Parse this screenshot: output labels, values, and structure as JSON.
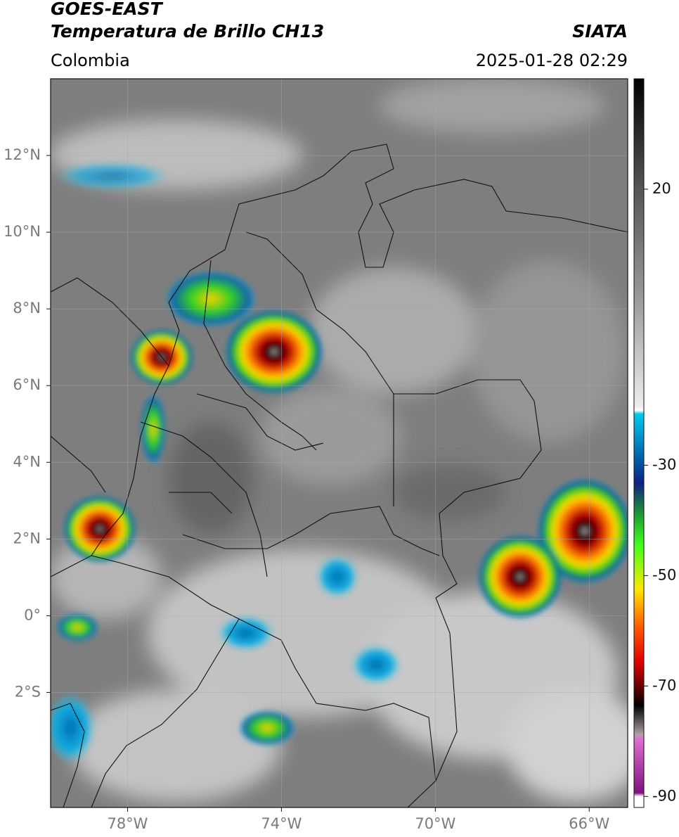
{
  "header": {
    "title": "GOES-EAST",
    "subtitle": "Temperatura de Brillo CH13",
    "source": "SIATA",
    "region": "Colombia",
    "timestamp": "2025-01-28 02:29"
  },
  "map": {
    "xlim": [
      -80,
      -65
    ],
    "ylim": [
      -5,
      14
    ],
    "xticks": [
      {
        "value": -78,
        "label": "78°W"
      },
      {
        "value": -74,
        "label": "74°W"
      },
      {
        "value": -70,
        "label": "70°W"
      },
      {
        "value": -66,
        "label": "66°W"
      }
    ],
    "yticks": [
      {
        "value": 12,
        "label": "12°N"
      },
      {
        "value": 10,
        "label": "10°N"
      },
      {
        "value": 8,
        "label": "8°N"
      },
      {
        "value": 6,
        "label": "6°N"
      },
      {
        "value": 4,
        "label": "4°N"
      },
      {
        "value": 2,
        "label": "2°N"
      },
      {
        "value": 0,
        "label": "0°"
      },
      {
        "value": -2,
        "label": "2°S"
      }
    ],
    "grid": true
  },
  "colorbar": {
    "lim": [
      -92,
      40
    ],
    "ticks": [
      20,
      -30,
      -50,
      -70,
      -90
    ]
  }
}
